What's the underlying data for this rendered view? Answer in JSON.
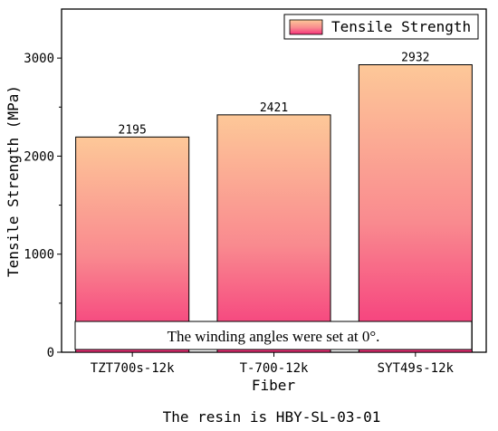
{
  "chart_data": {
    "type": "bar",
    "categories": [
      "TZT700s-12k",
      "T-700-12k",
      "SYT49s-12k"
    ],
    "series": [
      {
        "name": "Tensile Strength",
        "values": [
          2195,
          2421,
          2932
        ]
      }
    ],
    "data_labels": [
      "2195",
      "2421",
      "2932"
    ],
    "xlabel": "Fiber",
    "ylabel": "Tensile Strength (MPa)",
    "ylim": [
      0,
      3500
    ],
    "yticks": [
      0,
      1000,
      2000,
      3000
    ],
    "grid": false,
    "legend": "top-right",
    "annotation": "The winding angles were set at 0°.",
    "caption": "The resin is HBY-SL-03-01",
    "colors": {
      "gradient_top": "#FDC898",
      "gradient_bottom": "#F5307A",
      "axis": "#000000"
    }
  }
}
